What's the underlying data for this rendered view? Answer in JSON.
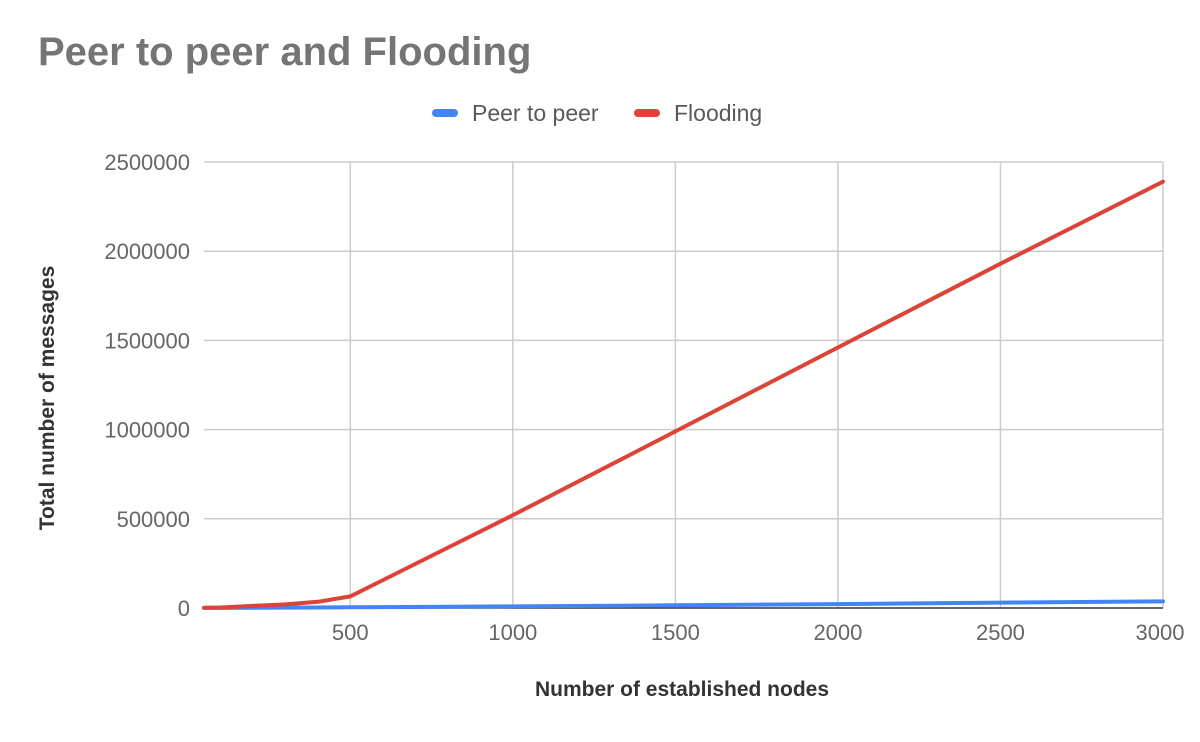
{
  "chart_data": {
    "type": "line",
    "title": "Peer to peer and Flooding",
    "xlabel": "Number of established nodes",
    "ylabel": "Total number of messages",
    "x": [
      50,
      100,
      200,
      300,
      400,
      500,
      1000,
      1500,
      2000,
      2500,
      3000
    ],
    "series": [
      {
        "name": "Peer to peer",
        "color": "#4285f4",
        "values": [
          300,
          700,
          1400,
          2200,
          3000,
          4000,
          9000,
          15000,
          22000,
          30000,
          37000
        ]
      },
      {
        "name": "Flooding",
        "color": "#db4437",
        "values": [
          1000,
          3000,
          12000,
          20000,
          35000,
          65000,
          520000,
          990000,
          1460000,
          1930000,
          2390000
        ]
      }
    ],
    "xlim": [
      50,
      3000
    ],
    "ylim": [
      0,
      2500000
    ],
    "xticks": [
      500,
      1000,
      1500,
      2000,
      2500,
      3000
    ],
    "yticks": [
      0,
      500000,
      1000000,
      1500000,
      2000000,
      2500000
    ],
    "grid": true,
    "legend_position": "top"
  }
}
